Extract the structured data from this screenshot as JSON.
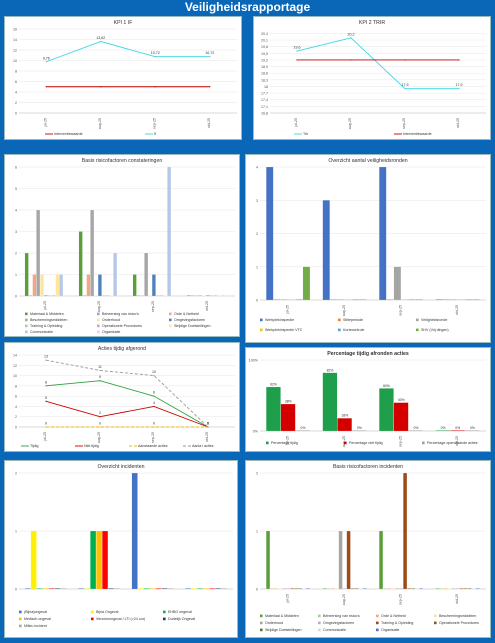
{
  "page_title": "Veiligheidsrapportage",
  "chart_data": [
    {
      "id": "c1",
      "type": "line",
      "title": "KPI 1 IF",
      "categories": [
        "jul-25",
        "aug-25",
        "sep-25",
        "okt-25"
      ],
      "ylim": [
        0,
        16
      ],
      "yticks": [
        0,
        2,
        4,
        6,
        8,
        10,
        12,
        14,
        16
      ],
      "series": [
        {
          "name": "Interventiewaarde",
          "color": "#c00000",
          "values": [
            5,
            5,
            5,
            5
          ],
          "labels": [
            "",
            "",
            "",
            ""
          ]
        },
        {
          "name": "If",
          "color": "#39d6e0",
          "values": [
            9.76,
            13.62,
            10.72,
            10.72
          ],
          "labels": [
            "9,76",
            "13,62",
            "10,72",
            "10,72"
          ]
        }
      ]
    },
    {
      "id": "c2",
      "type": "line",
      "title": "KPI 2 TRIR",
      "categories": [
        "jul-25",
        "aug-25",
        "sep-25",
        "okt-25"
      ],
      "ylim": [
        16.8,
        20.6
      ],
      "yticks": [
        16.8,
        17.1,
        17.4,
        17.7,
        18,
        18.3,
        18.6,
        18.9,
        19.2,
        19.5,
        19.8,
        20.1,
        20.4
      ],
      "ytick_labels": [
        "16,8",
        "17,1",
        "17,4",
        "17,7",
        "18",
        "18,3",
        "18,6",
        "18,9",
        "19,2",
        "19,5",
        "19,8",
        "20,1",
        "20,4"
      ],
      "series": [
        {
          "name": "Trir",
          "color": "#39d6e0",
          "values": [
            19.6,
            20.2,
            17.9,
            17.9
          ],
          "labels": [
            "19,6",
            "20,2",
            "17,9",
            "17,9"
          ]
        },
        {
          "name": "Interventiewaarde",
          "color": "#c00000",
          "values": [
            19.2,
            19.2,
            19.2,
            19.2
          ],
          "labels": [
            "",
            "",
            "",
            ""
          ]
        }
      ]
    },
    {
      "id": "c3",
      "type": "bar",
      "title": "Basis risicofactoren constateringen",
      "categories": [
        "jul-25",
        "aug-25",
        "sep-25",
        "okt-25"
      ],
      "ylim": [
        0,
        6
      ],
      "yticks": [
        0,
        1,
        2,
        3,
        4,
        5,
        6
      ],
      "series": [
        {
          "name": "Materiaal & Middelen",
          "color": "#5a9e3a",
          "values": [
            2,
            3,
            1,
            0
          ]
        },
        {
          "name": "Beheersing van risico's",
          "color": "#8faadc",
          "values": [
            0,
            0,
            0,
            0
          ]
        },
        {
          "name": "Orde & Netheid",
          "color": "#f4a582",
          "values": [
            1,
            1,
            0,
            0
          ]
        },
        {
          "name": "Beschermingsmiddelen",
          "color": "#a6a6a6",
          "values": [
            4,
            4,
            2,
            0
          ]
        },
        {
          "name": "Onderhoud",
          "color": "#fce4a3",
          "values": [
            1,
            0,
            0,
            0
          ]
        },
        {
          "name": "Omgevingsfactoren",
          "color": "#4f81bd",
          "values": [
            0,
            1,
            1,
            0
          ]
        },
        {
          "name": "Training & Opleiding",
          "color": "#a9d18e",
          "values": [
            0,
            0,
            0,
            0
          ]
        },
        {
          "name": "Operationele Procedures",
          "color": "#c9a0dc",
          "values": [
            0,
            0,
            0,
            0
          ]
        },
        {
          "name": "Strijdige Doelstellingen",
          "color": "#ffe699",
          "values": [
            1,
            0,
            0,
            0
          ]
        },
        {
          "name": "Communicatie",
          "color": "#b4c7e7",
          "values": [
            1,
            2,
            6,
            0
          ]
        },
        {
          "name": "Organisatie",
          "color": "#d9d9d9",
          "values": [
            0,
            0,
            0,
            0
          ]
        }
      ]
    },
    {
      "id": "c4",
      "type": "bar",
      "title": "Overzicht aantal veiligheidsronden",
      "categories": [
        "jul-25",
        "aug-25",
        "sep-25",
        "okt-25"
      ],
      "ylim": [
        0,
        4
      ],
      "yticks": [
        0,
        1,
        2,
        3,
        4
      ],
      "series": [
        {
          "name": "Werkplekinspectie",
          "color": "#4472c4",
          "values": [
            4,
            3,
            4,
            0
          ]
        },
        {
          "name": "Stilteperiode",
          "color": "#ed7d31",
          "values": [
            0,
            0,
            0,
            0
          ]
        },
        {
          "name": "Veiligheidsronde",
          "color": "#a5a5a5",
          "values": [
            0,
            0,
            1,
            0
          ]
        },
        {
          "name": "Werkplekinspectie VTC",
          "color": "#ffc000",
          "values": [
            0,
            0,
            0,
            0
          ]
        },
        {
          "name": "Kortecontrole",
          "color": "#5b9bd5",
          "values": [
            0,
            0,
            0,
            0
          ]
        },
        {
          "name": "SHV (Vrij dingen)",
          "color": "#70ad47",
          "values": [
            1,
            0,
            0,
            0
          ]
        }
      ]
    },
    {
      "id": "c5",
      "type": "line",
      "title": "Acties tijdig afgerond",
      "categories": [
        "jul-25",
        "aug-25",
        "sep-25",
        "okt-25"
      ],
      "ylim": [
        0,
        14
      ],
      "yticks": [
        0,
        2,
        4,
        6,
        8,
        10,
        12,
        14
      ],
      "series": [
        {
          "name": "Tijdig",
          "color": "#2e9e3f",
          "values": [
            8,
            9,
            6,
            0
          ],
          "labels": [
            "8",
            "9",
            "6",
            "0"
          ],
          "dash": ""
        },
        {
          "name": "Niet tijdig",
          "color": "#d00000",
          "values": [
            5,
            2,
            4,
            0
          ],
          "labels": [
            "5",
            "2",
            "4",
            "0"
          ],
          "dash": ""
        },
        {
          "name": "Aanstaande acties",
          "color": "#f2b600",
          "values": [
            0,
            0,
            0,
            0
          ],
          "labels": [
            "0",
            "0",
            "0",
            "0"
          ],
          "dash": "3,2"
        },
        {
          "name": "Aanta l acties",
          "color": "#9a9a9a",
          "values": [
            13,
            11,
            10,
            0
          ],
          "labels": [
            "13",
            "11",
            "10",
            "0"
          ],
          "dash": "3,2"
        }
      ]
    },
    {
      "id": "c6",
      "type": "bar",
      "title": "Percentage tijdig afronden acties",
      "categories": [
        "jul-25",
        "aug-25",
        "sep-25",
        "okt-25"
      ],
      "ylim": [
        0,
        100
      ],
      "yticks": [
        0,
        100
      ],
      "ytick_labels": [
        "0%",
        "100%"
      ],
      "series": [
        {
          "name": "Percentage tijdig",
          "color": "#1f9e4b",
          "values": [
            62,
            82,
            60,
            0
          ],
          "labels": [
            "62%",
            "82%",
            "60%",
            "0%"
          ]
        },
        {
          "name": "Percentage niet tijdig",
          "color": "#d40000",
          "values": [
            38,
            18,
            40,
            0
          ],
          "labels": [
            "38%",
            "18%",
            "40%",
            "0%"
          ]
        },
        {
          "name": "Percentage openstaande acties",
          "color": "#9e9e9e",
          "values": [
            0,
            0,
            0,
            0
          ],
          "labels": [
            "0%",
            "0%",
            "0%",
            "0%"
          ]
        }
      ]
    },
    {
      "id": "c7",
      "type": "bar",
      "title": "Overzicht incidenten",
      "categories": [
        "",
        "",
        "",
        ""
      ],
      "ylim": [
        0,
        2
      ],
      "yticks": [
        0,
        1,
        2
      ],
      "series": [
        {
          "name": "(Bijna)ongeval",
          "color": "#4472c4",
          "values": [
            0,
            0,
            2,
            0
          ]
        },
        {
          "name": "Bijna Ongeval",
          "color": "#ffef00",
          "values": [
            1,
            0,
            0,
            0
          ]
        },
        {
          "name": "EHBO ongeval",
          "color": "#00b050",
          "values": [
            0,
            1,
            0,
            0
          ]
        },
        {
          "name": "Medisch ongeval",
          "color": "#ffc000",
          "values": [
            0,
            1,
            0,
            0
          ]
        },
        {
          "name": "Verzuimongeval / LTI (>24 uur)",
          "color": "#ff0000",
          "values": [
            0,
            1,
            0,
            0
          ]
        },
        {
          "name": "Dodelijk Ongeval",
          "color": "#1f3864",
          "values": [
            0,
            0,
            0,
            0
          ]
        },
        {
          "name": "Milieu incident",
          "color": "#a6a6a6",
          "values": [
            0,
            0,
            0,
            0
          ]
        }
      ]
    },
    {
      "id": "c8",
      "type": "bar",
      "title": "Basis risicofactoren incidenten",
      "categories": [
        "jul-25",
        "aug-25",
        "sep-25",
        "okt-25"
      ],
      "ylim": [
        0,
        2
      ],
      "yticks": [
        0,
        1,
        2
      ],
      "series": [
        {
          "name": "Materiaal & Middelen",
          "color": "#5a9e3a",
          "values": [
            1,
            0,
            1,
            0
          ]
        },
        {
          "name": "Beheersing van risico's",
          "color": "#a9d18e",
          "values": [
            0,
            0,
            0,
            0
          ]
        },
        {
          "name": "Orde & Netheid",
          "color": "#f4a582",
          "values": [
            0,
            0,
            0,
            0
          ]
        },
        {
          "name": "Beschermingsmiddelen",
          "color": "#fce4a3",
          "values": [
            0,
            0,
            0,
            0
          ]
        },
        {
          "name": "Onderhoud",
          "color": "#a6a6a6",
          "values": [
            0,
            1,
            0,
            0
          ]
        },
        {
          "name": "Omgevingsfactoren",
          "color": "#c9a0dc",
          "values": [
            0,
            0,
            0,
            0
          ]
        },
        {
          "name": "Training & Opleiding",
          "color": "#9e4a16",
          "values": [
            0,
            1,
            2,
            0
          ]
        },
        {
          "name": "Operationele Procedures",
          "color": "#8c5a20",
          "values": [
            0,
            0,
            0,
            0
          ]
        },
        {
          "name": "Strijdige Doelstellingen",
          "color": "#4a7a2a",
          "values": [
            0,
            0,
            0,
            0
          ]
        },
        {
          "name": "Communicatie",
          "color": "#d9d9d9",
          "values": [
            0,
            0,
            0,
            0
          ]
        },
        {
          "name": "Organisatie",
          "color": "#4472c4",
          "values": [
            0,
            0,
            0,
            0
          ]
        }
      ]
    }
  ]
}
